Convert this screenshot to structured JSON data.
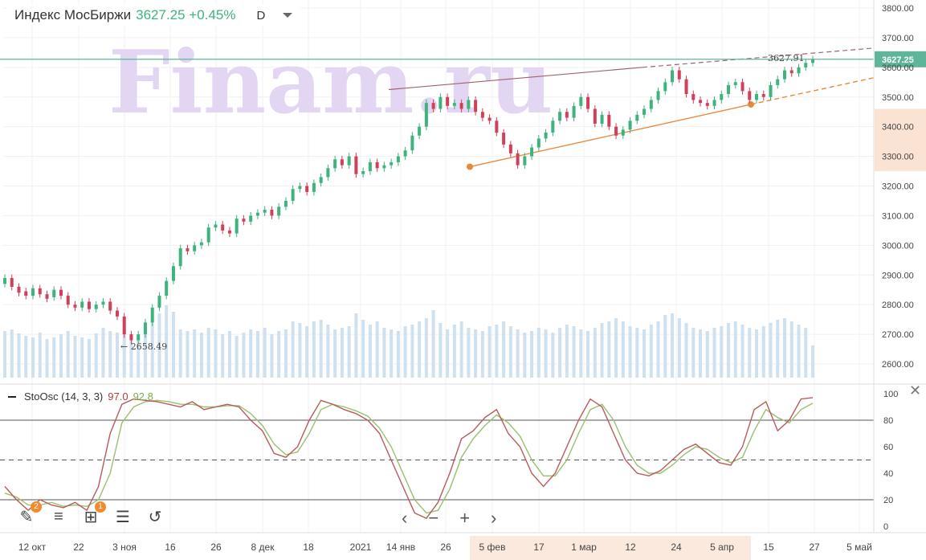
{
  "header": {
    "instrument": "Индекс МосБиржи",
    "price_change": "3627.25 +0.45%",
    "timeframe": "D"
  },
  "indicator": {
    "name": "StoOsc (14, 3, 3)",
    "k_value": "97.0",
    "d_value": "92.8"
  },
  "watermark": "Finam.ru",
  "annotations": {
    "min_label": "2658.49",
    "max_label": "3627.91",
    "last_price": "3627.25"
  },
  "toolbar": {
    "badge_drawing": "2",
    "badge_indicators": "1"
  },
  "colors": {
    "up": "#3eb37c",
    "down": "#d0405a",
    "volume": "#cfe0ee",
    "trend_upper": "#a0636b",
    "trend_lower": "#e8893a",
    "price_line": "#5fb59a",
    "stoch_k": "#b85a5a",
    "stoch_d": "#9abf6e"
  },
  "chart_data": {
    "type": "candlestick",
    "price_axis": {
      "ylim": [
        2560,
        3800
      ],
      "ticks": [
        "3800.00",
        "3700.00",
        "3600.00",
        "3500.00",
        "3400.00",
        "3300.00",
        "3200.00",
        "3100.00",
        "3000.00",
        "2900.00",
        "2800.00",
        "2700.00",
        "2600.00"
      ]
    },
    "time_axis": {
      "labels": [
        "12 окт",
        "22",
        "3 ноя",
        "16",
        "26",
        "8 дек",
        "18",
        "2021",
        "14 янв",
        "26",
        "5 фев",
        "17",
        "1 мар",
        "12",
        "24",
        "5 апр",
        "15",
        "27",
        "5 май"
      ]
    },
    "stoch_axis": {
      "ylim": [
        0,
        100
      ],
      "ticks": [
        "100",
        "80",
        "60",
        "40",
        "20",
        "0"
      ],
      "levels": [
        80,
        50,
        20
      ]
    },
    "candles": [
      [
        2870,
        2890
      ],
      [
        2890,
        2860
      ],
      [
        2860,
        2840
      ],
      [
        2845,
        2830
      ],
      [
        2830,
        2855
      ],
      [
        2855,
        2835
      ],
      [
        2835,
        2820
      ],
      [
        2825,
        2850
      ],
      [
        2850,
        2830
      ],
      [
        2830,
        2800
      ],
      [
        2800,
        2790
      ],
      [
        2790,
        2810
      ],
      [
        2810,
        2785
      ],
      [
        2785,
        2800
      ],
      [
        2800,
        2810
      ],
      [
        2810,
        2780
      ],
      [
        2780,
        2760
      ],
      [
        2760,
        2700
      ],
      [
        2700,
        2680
      ],
      [
        2680,
        2700
      ],
      [
        2700,
        2740
      ],
      [
        2740,
        2790
      ],
      [
        2790,
        2830
      ],
      [
        2830,
        2880
      ],
      [
        2880,
        2930
      ],
      [
        2930,
        2990
      ],
      [
        2990,
        2980
      ],
      [
        2980,
        3000
      ],
      [
        3000,
        3010
      ],
      [
        3010,
        3060
      ],
      [
        3060,
        3070
      ],
      [
        3070,
        3050
      ],
      [
        3050,
        3040
      ],
      [
        3040,
        3090
      ],
      [
        3090,
        3080
      ],
      [
        3080,
        3100
      ],
      [
        3100,
        3110
      ],
      [
        3110,
        3120
      ],
      [
        3120,
        3100
      ],
      [
        3100,
        3130
      ],
      [
        3130,
        3150
      ],
      [
        3150,
        3190
      ],
      [
        3190,
        3200
      ],
      [
        3200,
        3180
      ],
      [
        3180,
        3210
      ],
      [
        3210,
        3230
      ],
      [
        3230,
        3260
      ],
      [
        3260,
        3290
      ],
      [
        3290,
        3270
      ],
      [
        3270,
        3300
      ],
      [
        3300,
        3240
      ],
      [
        3240,
        3250
      ],
      [
        3250,
        3280
      ],
      [
        3280,
        3260
      ],
      [
        3260,
        3270
      ],
      [
        3270,
        3280
      ],
      [
        3280,
        3300
      ],
      [
        3300,
        3320
      ],
      [
        3320,
        3370
      ],
      [
        3370,
        3400
      ],
      [
        3400,
        3480
      ],
      [
        3480,
        3460
      ],
      [
        3460,
        3500
      ],
      [
        3500,
        3470
      ],
      [
        3470,
        3480
      ],
      [
        3480,
        3460
      ],
      [
        3460,
        3490
      ],
      [
        3490,
        3450
      ],
      [
        3450,
        3430
      ],
      [
        3430,
        3420
      ],
      [
        3420,
        3380
      ],
      [
        3380,
        3340
      ],
      [
        3340,
        3310
      ],
      [
        3310,
        3270
      ],
      [
        3270,
        3300
      ],
      [
        3300,
        3330
      ],
      [
        3330,
        3360
      ],
      [
        3360,
        3380
      ],
      [
        3380,
        3420
      ],
      [
        3420,
        3450
      ],
      [
        3450,
        3430
      ],
      [
        3430,
        3470
      ],
      [
        3470,
        3500
      ],
      [
        3500,
        3460
      ],
      [
        3460,
        3410
      ],
      [
        3410,
        3440
      ],
      [
        3440,
        3400
      ],
      [
        3400,
        3370
      ],
      [
        3370,
        3390
      ],
      [
        3390,
        3420
      ],
      [
        3420,
        3440
      ],
      [
        3440,
        3460
      ],
      [
        3460,
        3490
      ],
      [
        3490,
        3520
      ],
      [
        3520,
        3550
      ],
      [
        3550,
        3590
      ],
      [
        3590,
        3560
      ],
      [
        3560,
        3510
      ],
      [
        3510,
        3490
      ],
      [
        3490,
        3480
      ],
      [
        3480,
        3470
      ],
      [
        3470,
        3490
      ],
      [
        3490,
        3510
      ],
      [
        3510,
        3540
      ],
      [
        3540,
        3550
      ],
      [
        3550,
        3520
      ],
      [
        3520,
        3490
      ],
      [
        3490,
        3510
      ],
      [
        3510,
        3500
      ],
      [
        3500,
        3540
      ],
      [
        3540,
        3560
      ],
      [
        3560,
        3590
      ],
      [
        3590,
        3580
      ],
      [
        3580,
        3600
      ],
      [
        3600,
        3615
      ],
      [
        3615,
        3627.25
      ]
    ],
    "volumes": [
      58,
      60,
      55,
      52,
      50,
      56,
      48,
      50,
      54,
      58,
      52,
      50,
      48,
      55,
      62,
      58,
      56,
      60,
      52,
      50,
      54,
      70,
      80,
      90,
      82,
      60,
      58,
      60,
      56,
      62,
      60,
      54,
      58,
      52,
      56,
      60,
      58,
      62,
      54,
      58,
      60,
      70,
      68,
      64,
      70,
      72,
      66,
      60,
      62,
      64,
      80,
      72,
      66,
      70,
      62,
      60,
      58,
      64,
      66,
      70,
      74,
      84,
      68,
      60,
      66,
      70,
      62,
      60,
      58,
      64,
      66,
      70,
      64,
      60,
      56,
      58,
      62,
      60,
      56,
      62,
      66,
      64,
      60,
      58,
      62,
      68,
      70,
      74,
      70,
      64,
      62,
      60,
      66,
      70,
      78,
      80,
      74,
      68,
      62,
      60,
      58,
      62,
      64,
      68,
      70,
      66,
      62,
      60,
      64,
      68,
      72,
      74,
      70,
      66,
      62,
      40
    ],
    "stoch_k": [
      30,
      20,
      12,
      20,
      16,
      14,
      18,
      12,
      30,
      70,
      92,
      96,
      95,
      94,
      92,
      90,
      94,
      88,
      90,
      92,
      90,
      80,
      72,
      55,
      52,
      60,
      80,
      95,
      92,
      88,
      85,
      80,
      70,
      50,
      30,
      10,
      6,
      18,
      40,
      66,
      72,
      82,
      88,
      70,
      60,
      40,
      30,
      40,
      60,
      80,
      96,
      90,
      70,
      50,
      40,
      38,
      42,
      50,
      58,
      62,
      55,
      48,
      46,
      60,
      88,
      94,
      72,
      80,
      96,
      97
    ],
    "stoch_d": [
      25,
      22,
      16,
      16,
      18,
      15,
      16,
      15,
      20,
      40,
      78,
      90,
      94,
      95,
      94,
      92,
      92,
      90,
      90,
      91,
      91,
      85,
      76,
      62,
      54,
      56,
      70,
      88,
      92,
      90,
      87,
      83,
      74,
      60,
      40,
      20,
      10,
      12,
      28,
      52,
      66,
      76,
      84,
      78,
      68,
      50,
      38,
      38,
      50,
      70,
      88,
      92,
      80,
      60,
      46,
      40,
      40,
      46,
      54,
      60,
      58,
      52,
      48,
      52,
      72,
      88,
      82,
      78,
      88,
      92.8
    ]
  }
}
